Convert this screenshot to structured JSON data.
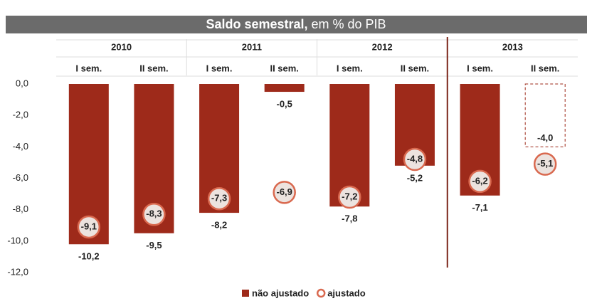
{
  "chart_data": {
    "type": "bar",
    "title": "Saldo semestral,",
    "subtitle": "em % do PIB",
    "groups": [
      "2010",
      "2011",
      "2012",
      "2013"
    ],
    "categories": [
      "I sem.",
      "II sem.",
      "I sem.",
      "II sem.",
      "I sem.",
      "II sem.",
      "I sem.",
      "II sem."
    ],
    "series": [
      {
        "name": "não ajustado",
        "color": "#9e2a1a",
        "marker": "bar",
        "values": [
          -10.2,
          -9.5,
          -8.2,
          -0.5,
          -7.8,
          -5.2,
          -7.1,
          -4.0
        ],
        "value_labels": [
          "-10,2",
          "-9,5",
          "-8,2",
          "-0,5",
          "-7,8",
          "-5,2",
          "-7,1",
          "-4,0"
        ],
        "dashed": [
          false,
          false,
          false,
          false,
          false,
          false,
          false,
          true
        ]
      },
      {
        "name": "ajustado",
        "color": "#d9694f",
        "marker": "circle",
        "values": [
          -9.1,
          -8.3,
          -7.3,
          -6.9,
          -7.2,
          -4.8,
          -6.2,
          -5.1
        ],
        "value_labels": [
          "-9,1",
          "-8,3",
          "-7,3",
          "-6,9",
          "-7,2",
          "-4,8",
          "-6,2",
          "-5,1"
        ]
      }
    ],
    "ylim": [
      -12,
      0
    ],
    "yticks": [
      {
        "value": 0,
        "label": "0,0"
      },
      {
        "value": -2,
        "label": "-2,0"
      },
      {
        "value": -4,
        "label": "-4,0"
      },
      {
        "value": -6,
        "label": "-6,0"
      },
      {
        "value": -8,
        "label": "-8,0"
      },
      {
        "value": -10,
        "label": "-10,0"
      },
      {
        "value": -12,
        "label": "-12,0"
      }
    ],
    "legend": "bottom"
  }
}
